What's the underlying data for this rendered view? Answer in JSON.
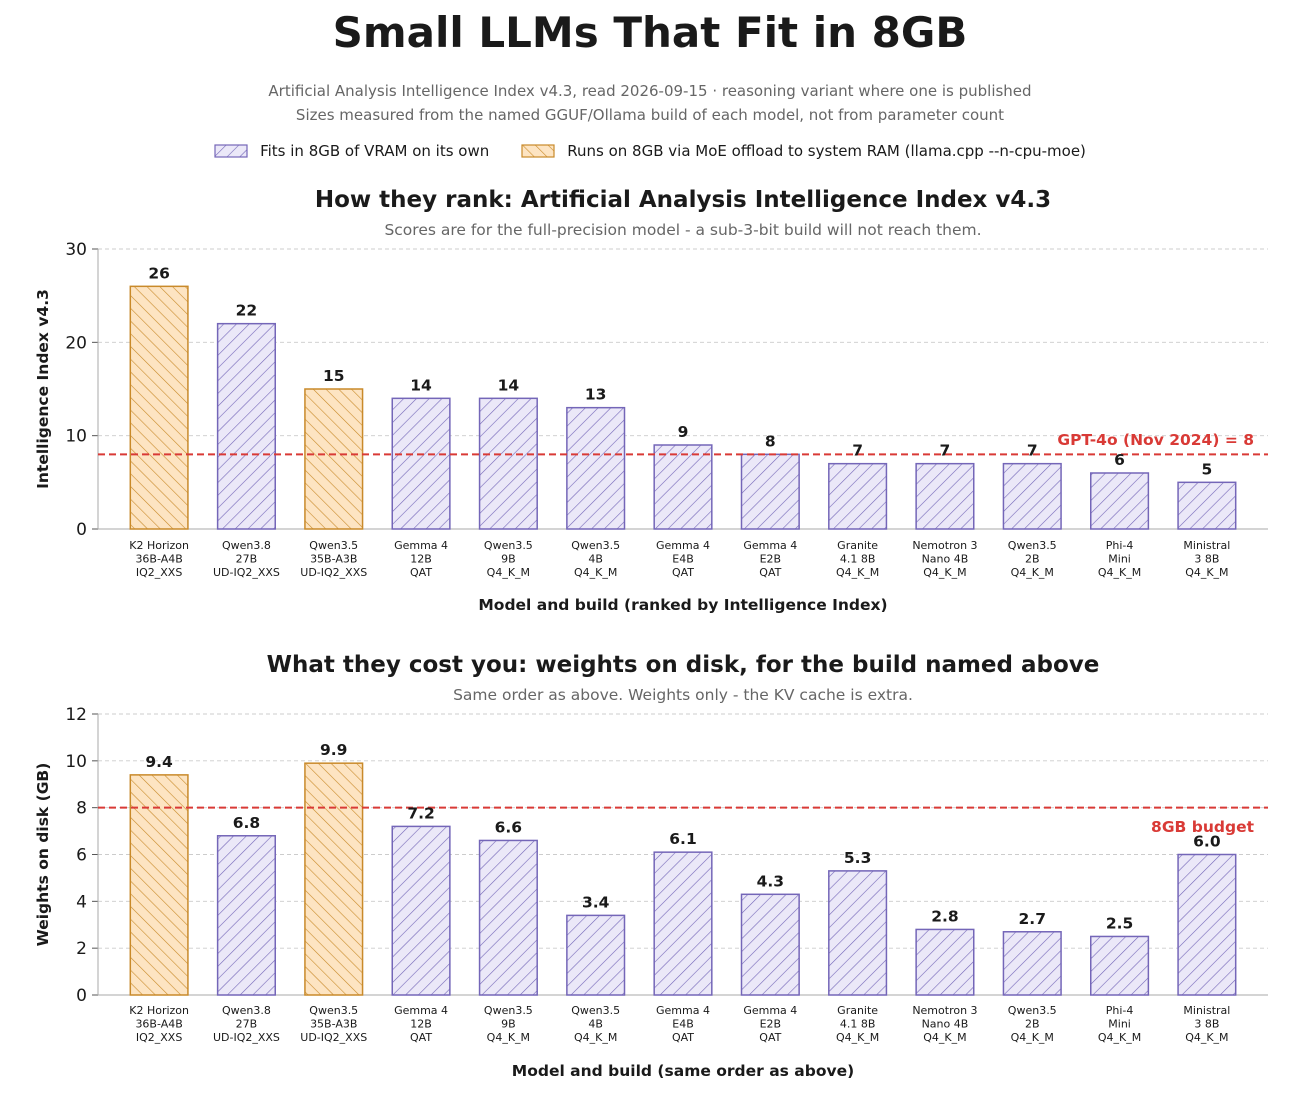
{
  "title": "Small LLMs That Fit in 8GB",
  "subtitle_lines": [
    "Artificial Analysis Intelligence Index v4.3, read 2026-09-15  ·  reasoning variant where one is published",
    "Sizes measured from the named GGUF/Ollama build of each model, not from parameter count"
  ],
  "legend": [
    {
      "label": "Fits in 8GB of VRAM on its own",
      "fill": "#ebe8f8",
      "stroke": "#7466b8"
    },
    {
      "label": "Runs on 8GB via MoE offload to system RAM (llama.cpp --n-cpu-moe)",
      "fill": "#fde4c2",
      "stroke": "#c98a2a"
    }
  ],
  "colors": {
    "vram_fill": "#ebe8f8",
    "vram_stroke": "#7466b8",
    "moe_fill": "#fde4c2",
    "moe_stroke": "#c98a2a",
    "reference_line": "#d93a36",
    "grid": "#cccccc"
  },
  "chart_data": [
    {
      "type": "bar",
      "title": "How they rank: Artificial Analysis Intelligence Index v4.3",
      "subtitle": "Scores are for the full-precision model - a sub-3-bit build will not reach them.",
      "xlabel": "Model and build (ranked by Intelligence Index)",
      "ylabel": "Intelligence Index v4.3",
      "ylim": [
        0,
        30
      ],
      "yticks": [
        0,
        10,
        20,
        30
      ],
      "grid": true,
      "categories": [
        [
          "K2 Horizon",
          "36B-A4B",
          "IQ2_XXS"
        ],
        [
          "Qwen3.8",
          "27B",
          "UD-IQ2_XXS"
        ],
        [
          "Qwen3.5",
          "35B-A3B",
          "UD-IQ2_XXS"
        ],
        [
          "Gemma 4",
          "12B",
          "QAT"
        ],
        [
          "Qwen3.5",
          "9B",
          "Q4_K_M"
        ],
        [
          "Qwen3.5",
          "4B",
          "Q4_K_M"
        ],
        [
          "Gemma 4",
          "E4B",
          "QAT"
        ],
        [
          "Gemma 4",
          "E2B",
          "QAT"
        ],
        [
          "Granite",
          "4.1 8B",
          "Q4_K_M"
        ],
        [
          "Nemotron 3",
          "Nano 4B",
          "Q4_K_M"
        ],
        [
          "Qwen3.5",
          "2B",
          "Q4_K_M"
        ],
        [
          "Phi-4",
          "Mini",
          "Q4_K_M"
        ],
        [
          "Ministral",
          "3 8B",
          "Q4_K_M"
        ]
      ],
      "groups": [
        "moe",
        "vram",
        "moe",
        "vram",
        "vram",
        "vram",
        "vram",
        "vram",
        "vram",
        "vram",
        "vram",
        "vram",
        "vram"
      ],
      "values": [
        26,
        22,
        15,
        14,
        14,
        13,
        9,
        8,
        7,
        7,
        7,
        6,
        5
      ],
      "value_labels": [
        "26",
        "22",
        "15",
        "14",
        "14",
        "13",
        "9",
        "8",
        "7",
        "7",
        "7",
        "6",
        "5"
      ],
      "reference": {
        "value": 8,
        "label": "GPT-4o (Nov 2024) = 8"
      }
    },
    {
      "type": "bar",
      "title": "What they cost you: weights on disk, for the build named above",
      "subtitle": "Same order as above. Weights only - the KV cache is extra.",
      "xlabel": "Model and build (same order as above)",
      "ylabel": "Weights on disk (GB)",
      "ylim": [
        0,
        12
      ],
      "yticks": [
        0,
        2,
        4,
        6,
        8,
        10,
        12
      ],
      "grid": true,
      "categories": [
        [
          "K2 Horizon",
          "36B-A4B",
          "IQ2_XXS"
        ],
        [
          "Qwen3.8",
          "27B",
          "UD-IQ2_XXS"
        ],
        [
          "Qwen3.5",
          "35B-A3B",
          "UD-IQ2_XXS"
        ],
        [
          "Gemma 4",
          "12B",
          "QAT"
        ],
        [
          "Qwen3.5",
          "9B",
          "Q4_K_M"
        ],
        [
          "Qwen3.5",
          "4B",
          "Q4_K_M"
        ],
        [
          "Gemma 4",
          "E4B",
          "QAT"
        ],
        [
          "Gemma 4",
          "E2B",
          "QAT"
        ],
        [
          "Granite",
          "4.1 8B",
          "Q4_K_M"
        ],
        [
          "Nemotron 3",
          "Nano 4B",
          "Q4_K_M"
        ],
        [
          "Qwen3.5",
          "2B",
          "Q4_K_M"
        ],
        [
          "Phi-4",
          "Mini",
          "Q4_K_M"
        ],
        [
          "Ministral",
          "3 8B",
          "Q4_K_M"
        ]
      ],
      "groups": [
        "moe",
        "vram",
        "moe",
        "vram",
        "vram",
        "vram",
        "vram",
        "vram",
        "vram",
        "vram",
        "vram",
        "vram",
        "vram"
      ],
      "values": [
        9.4,
        6.8,
        9.9,
        7.2,
        6.6,
        3.4,
        6.1,
        4.3,
        5.3,
        2.8,
        2.7,
        2.5,
        6.0
      ],
      "value_labels": [
        "9.4",
        "6.8",
        "9.9",
        "7.2",
        "6.6",
        "3.4",
        "6.1",
        "4.3",
        "5.3",
        "2.8",
        "2.7",
        "2.5",
        "6.0"
      ],
      "reference": {
        "value": 8,
        "label": "8GB budget"
      }
    }
  ]
}
